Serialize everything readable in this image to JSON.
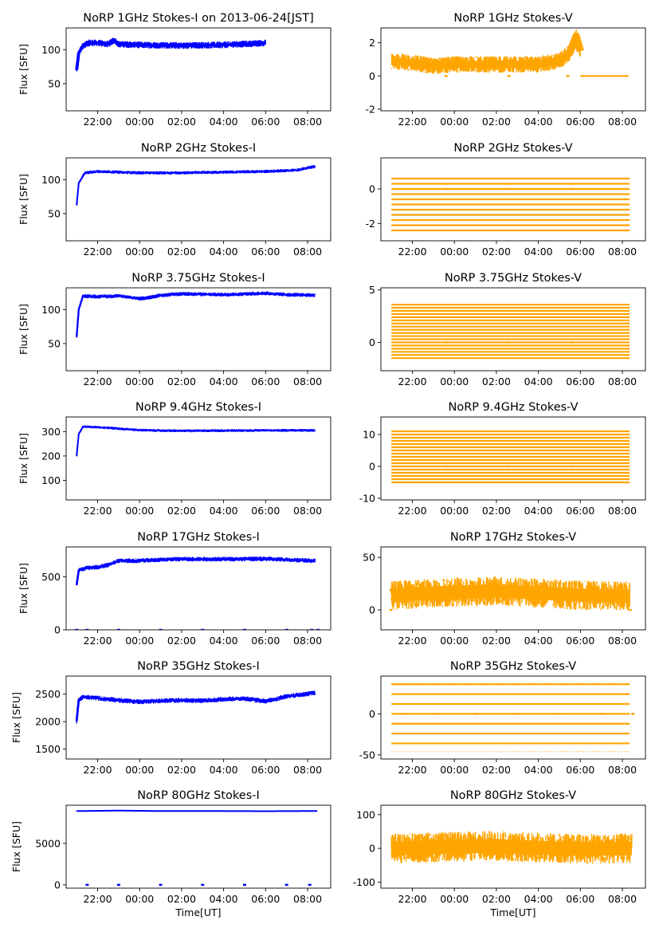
{
  "figure": {
    "shared_xlabel": "Time[UT]"
  },
  "colors": {
    "stokes_i": "#0000ff",
    "stokes_v": "#ffa500"
  },
  "chart_data": [
    {
      "type": "scatter",
      "panel": "1GHz-I",
      "title": "NoRP 1GHz Stokes-I on 2013-06-24[JST]",
      "ylabel": "Flux [SFU]",
      "xlabel": "",
      "x_ticks": [
        "22:00",
        "00:00",
        "02:00",
        "04:00",
        "06:00",
        "08:00"
      ],
      "y_ticks": [
        50,
        100
      ],
      "xlim": [
        20.5,
        33.1
      ],
      "ylim": [
        10,
        132
      ],
      "series": [
        {
          "name": "Stokes-I",
          "x_start": 21.0,
          "x_end": 30.0,
          "points": [
            [
              21.0,
              70
            ],
            [
              21.1,
              95
            ],
            [
              21.3,
              106
            ],
            [
              21.6,
              110
            ],
            [
              22.0,
              110
            ],
            [
              22.5,
              108
            ],
            [
              22.8,
              114
            ],
            [
              23.0,
              108
            ],
            [
              24.0,
              107
            ],
            [
              26.0,
              106
            ],
            [
              28.0,
              107
            ],
            [
              29.5,
              109
            ],
            [
              30.0,
              110
            ]
          ],
          "spread": 5,
          "dropouts": []
        }
      ]
    },
    {
      "type": "scatter",
      "panel": "1GHz-V",
      "title": "NoRP 1GHz Stokes-V",
      "ylabel": "",
      "xlabel": "",
      "x_ticks": [
        "22:00",
        "00:00",
        "02:00",
        "04:00",
        "06:00",
        "08:00"
      ],
      "y_ticks": [
        -2,
        0,
        2
      ],
      "xlim": [
        20.5,
        33.1
      ],
      "ylim": [
        -2.1,
        2.9
      ],
      "series": [
        {
          "name": "Stokes-V",
          "x_start": 21.0,
          "x_end": 30.0,
          "points": [
            [
              21.0,
              0.9
            ],
            [
              22.0,
              0.8
            ],
            [
              23.0,
              0.6
            ],
            [
              24.0,
              0.7
            ],
            [
              26.0,
              0.7
            ],
            [
              28.0,
              0.7
            ],
            [
              29.0,
              0.9
            ],
            [
              29.5,
              1.4
            ],
            [
              29.8,
              2.4
            ],
            [
              30.0,
              1.5
            ]
          ],
          "spread": 0.5,
          "zero_line": [
            30.0,
            32.3
          ],
          "dropouts": [
            23.6,
            26.6,
            29.4
          ]
        }
      ]
    },
    {
      "type": "scatter",
      "panel": "2GHz-I",
      "title": "NoRP 2GHz Stokes-I",
      "ylabel": "Flux [SFU]",
      "xlabel": "",
      "x_ticks": [
        "22:00",
        "00:00",
        "02:00",
        "04:00",
        "06:00",
        "08:00"
      ],
      "y_ticks": [
        50,
        100
      ],
      "xlim": [
        20.5,
        33.1
      ],
      "ylim": [
        10,
        132
      ],
      "series": [
        {
          "name": "Stokes-I",
          "x_start": 21.0,
          "x_end": 32.35,
          "points": [
            [
              21.0,
              62
            ],
            [
              21.1,
              95
            ],
            [
              21.4,
              110
            ],
            [
              22.0,
              112
            ],
            [
              24.0,
              110
            ],
            [
              26.0,
              110
            ],
            [
              28.0,
              111
            ],
            [
              30.0,
              112
            ],
            [
              31.5,
              114
            ],
            [
              32.3,
              119
            ]
          ],
          "spread": 2.5,
          "dropouts": []
        }
      ]
    },
    {
      "type": "scatter",
      "panel": "2GHz-V",
      "title": "NoRP 2GHz Stokes-V",
      "ylabel": "",
      "xlabel": "",
      "x_ticks": [
        "22:00",
        "00:00",
        "02:00",
        "04:00",
        "06:00",
        "08:00"
      ],
      "y_ticks": [
        -2,
        0
      ],
      "xlim": [
        20.5,
        33.1
      ],
      "ylim": [
        -3.0,
        1.8
      ],
      "series": [
        {
          "name": "Stokes-V",
          "x_start": 21.0,
          "x_end": 32.35,
          "levels": [
            0.6,
            0.3,
            0.0,
            -0.3,
            -0.6,
            -0.9,
            -1.2,
            -1.5,
            -1.8,
            -2.1,
            -2.4
          ],
          "dropouts": [
            23.6,
            26.6,
            29.6
          ]
        }
      ]
    },
    {
      "type": "scatter",
      "panel": "3.75GHz-I",
      "title": "NoRP 3.75GHz Stokes-I",
      "ylabel": "Flux [SFU]",
      "xlabel": "",
      "x_ticks": [
        "22:00",
        "00:00",
        "02:00",
        "04:00",
        "06:00",
        "08:00"
      ],
      "y_ticks": [
        50,
        100
      ],
      "xlim": [
        20.5,
        33.1
      ],
      "ylim": [
        10,
        132
      ],
      "series": [
        {
          "name": "Stokes-I",
          "x_start": 21.0,
          "x_end": 32.35,
          "points": [
            [
              21.0,
              60
            ],
            [
              21.1,
              100
            ],
            [
              21.3,
              120
            ],
            [
              22.0,
              119
            ],
            [
              23.0,
              120
            ],
            [
              24.0,
              116
            ],
            [
              24.5,
              118
            ],
            [
              25.0,
              121
            ],
            [
              26.0,
              123
            ],
            [
              28.0,
              122
            ],
            [
              30.0,
              124
            ],
            [
              31.0,
              122
            ],
            [
              32.3,
              121
            ]
          ],
          "spread": 3,
          "dropouts": []
        }
      ]
    },
    {
      "type": "scatter",
      "panel": "3.75GHz-V",
      "title": "NoRP 3.75GHz Stokes-V",
      "ylabel": "",
      "xlabel": "",
      "x_ticks": [
        "22:00",
        "00:00",
        "02:00",
        "04:00",
        "06:00",
        "08:00"
      ],
      "y_ticks": [
        0,
        5
      ],
      "xlim": [
        20.5,
        33.1
      ],
      "ylim": [
        -2.7,
        5.2
      ],
      "series": [
        {
          "name": "Stokes-V",
          "x_start": 21.0,
          "x_end": 32.35,
          "levels": [
            -1.5,
            -1.2,
            -0.9,
            -0.6,
            -0.3,
            0.0,
            0.3,
            0.6,
            0.9,
            1.2,
            1.5,
            1.8,
            2.1,
            2.4,
            2.7,
            3.0,
            3.3,
            3.6
          ],
          "dropouts": [
            23.6,
            26.6,
            29.6
          ]
        }
      ]
    },
    {
      "type": "scatter",
      "panel": "9.4GHz-I",
      "title": "NoRP 9.4GHz Stokes-I",
      "ylabel": "Flux [SFU]",
      "xlabel": "",
      "x_ticks": [
        "22:00",
        "00:00",
        "02:00",
        "04:00",
        "06:00",
        "08:00"
      ],
      "y_ticks": [
        100,
        200,
        300
      ],
      "xlim": [
        20.5,
        33.1
      ],
      "ylim": [
        20,
        360
      ],
      "series": [
        {
          "name": "Stokes-I",
          "x_start": 21.0,
          "x_end": 32.35,
          "points": [
            [
              21.0,
              200
            ],
            [
              21.1,
              290
            ],
            [
              21.3,
              320
            ],
            [
              22.0,
              318
            ],
            [
              23.0,
              312
            ],
            [
              24.0,
              306
            ],
            [
              26.0,
              303
            ],
            [
              28.0,
              304
            ],
            [
              30.0,
              305
            ],
            [
              32.3,
              305
            ]
          ],
          "spread": 6,
          "dropouts": []
        }
      ]
    },
    {
      "type": "scatter",
      "panel": "9.4GHz-V",
      "title": "NoRP 9.4GHz Stokes-V",
      "ylabel": "",
      "xlabel": "",
      "x_ticks": [
        "22:00",
        "00:00",
        "02:00",
        "04:00",
        "06:00",
        "08:00"
      ],
      "y_ticks": [
        -10,
        0,
        10
      ],
      "xlim": [
        20.5,
        33.1
      ],
      "ylim": [
        -10.5,
        15.5
      ],
      "series": [
        {
          "name": "Stokes-V",
          "x_start": 21.0,
          "x_end": 32.35,
          "levels": [
            -5,
            -4,
            -3,
            -2,
            -1,
            0,
            1,
            2,
            3,
            4,
            5,
            6,
            7,
            8,
            9,
            10,
            11
          ],
          "dropouts": [
            23.6,
            26.6,
            29.6
          ]
        }
      ]
    },
    {
      "type": "scatter",
      "panel": "17GHz-I",
      "title": "NoRP 17GHz Stokes-I",
      "ylabel": "Flux [SFU]",
      "xlabel": "",
      "x_ticks": [
        "22:00",
        "00:00",
        "02:00",
        "04:00",
        "06:00",
        "08:00"
      ],
      "y_ticks": [
        0,
        500
      ],
      "xlim": [
        20.5,
        33.1
      ],
      "ylim": [
        0,
        780
      ],
      "series": [
        {
          "name": "Stokes-I",
          "x_start": 21.0,
          "x_end": 32.35,
          "points": [
            [
              21.0,
              420
            ],
            [
              21.1,
              560
            ],
            [
              21.5,
              585
            ],
            [
              22.0,
              590
            ],
            [
              22.5,
              610
            ],
            [
              23.0,
              650
            ],
            [
              24.0,
              650
            ],
            [
              25.0,
              660
            ],
            [
              26.0,
              665
            ],
            [
              28.0,
              665
            ],
            [
              30.0,
              668
            ],
            [
              32.3,
              650
            ]
          ],
          "spread": 22,
          "dropouts": [
            21.0,
            21.5,
            23.0,
            25.0,
            27.0,
            29.0,
            31.0,
            32.2,
            32.5
          ]
        }
      ]
    },
    {
      "type": "scatter",
      "panel": "17GHz-V",
      "title": "NoRP 17GHz Stokes-V",
      "ylabel": "",
      "xlabel": "",
      "x_ticks": [
        "22:00",
        "00:00",
        "02:00",
        "04:00",
        "06:00",
        "08:00"
      ],
      "y_ticks": [
        0,
        50
      ],
      "xlim": [
        20.5,
        33.1
      ],
      "ylim": [
        -19,
        60
      ],
      "series": [
        {
          "name": "Stokes-V",
          "x_start": 21.0,
          "x_end": 32.35,
          "points": [
            [
              21.0,
              14
            ],
            [
              24.0,
              17
            ],
            [
              26.0,
              18
            ],
            [
              28.0,
              16
            ],
            [
              30.0,
              14
            ],
            [
              32.3,
              13
            ]
          ],
          "spread": 14,
          "zero_line_ends": true,
          "dropouts": []
        }
      ]
    },
    {
      "type": "scatter",
      "panel": "35GHz-I",
      "title": "NoRP 35GHz Stokes-I",
      "ylabel": "Flux [SFU]",
      "xlabel": "",
      "x_ticks": [
        "22:00",
        "00:00",
        "02:00",
        "04:00",
        "06:00",
        "08:00"
      ],
      "y_ticks": [
        1500,
        2000,
        2500
      ],
      "xlim": [
        20.5,
        33.1
      ],
      "ylim": [
        1320,
        2830
      ],
      "series": [
        {
          "name": "Stokes-I",
          "x_start": 21.0,
          "x_end": 32.35,
          "points": [
            [
              21.0,
              2010
            ],
            [
              21.1,
              2400
            ],
            [
              21.3,
              2450
            ],
            [
              22.0,
              2430
            ],
            [
              23.0,
              2390
            ],
            [
              24.0,
              2360
            ],
            [
              25.0,
              2380
            ],
            [
              26.0,
              2390
            ],
            [
              27.0,
              2380
            ],
            [
              28.0,
              2410
            ],
            [
              29.0,
              2420
            ],
            [
              30.0,
              2370
            ],
            [
              31.0,
              2460
            ],
            [
              32.3,
              2520
            ]
          ],
          "spread": 45,
          "dropouts": []
        }
      ]
    },
    {
      "type": "scatter",
      "panel": "35GHz-V",
      "title": "NoRP 35GHz Stokes-V",
      "ylabel": "",
      "xlabel": "",
      "x_ticks": [
        "22:00",
        "00:00",
        "02:00",
        "04:00",
        "06:00",
        "08:00"
      ],
      "y_ticks": [
        -50,
        0
      ],
      "xlim": [
        20.5,
        33.1
      ],
      "ylim": [
        -55,
        46
      ],
      "series": [
        {
          "name": "Stokes-V",
          "x_start": 21.0,
          "x_end": 32.35,
          "levels": [
            -36,
            -24,
            -12,
            0,
            12,
            24,
            36
          ],
          "faint_levels": [
            -46,
            -36,
            37
          ],
          "dropouts": [
            21.5,
            23.0,
            25.0,
            27.0,
            29.0,
            31.0,
            32.5
          ]
        }
      ]
    },
    {
      "type": "scatter",
      "panel": "80GHz-I",
      "title": "NoRP 80GHz Stokes-I",
      "ylabel": "Flux [SFU]",
      "xlabel": "Time[UT]",
      "x_ticks": [
        "22:00",
        "00:00",
        "02:00",
        "04:00",
        "06:00",
        "08:00"
      ],
      "y_ticks": [
        0,
        5000
      ],
      "xlim": [
        20.5,
        33.1
      ],
      "ylim": [
        -400,
        9600
      ],
      "series": [
        {
          "name": "Stokes-I",
          "x_start": 21.0,
          "x_end": 32.45,
          "points": [
            [
              21.0,
              8900
            ],
            [
              23.0,
              8950
            ],
            [
              25.0,
              8900
            ],
            [
              27.0,
              8900
            ],
            [
              30.0,
              8880
            ],
            [
              32.4,
              8900
            ]
          ],
          "spread": 60,
          "dropouts": [
            21.5,
            23.0,
            25.0,
            27.0,
            29.0,
            31.0,
            32.1
          ]
        }
      ]
    },
    {
      "type": "scatter",
      "panel": "80GHz-V",
      "title": "NoRP 80GHz Stokes-V",
      "ylabel": "",
      "xlabel": "Time[UT]",
      "x_ticks": [
        "22:00",
        "00:00",
        "02:00",
        "04:00",
        "06:00",
        "08:00"
      ],
      "y_ticks": [
        -100,
        0,
        100
      ],
      "xlim": [
        20.5,
        33.1
      ],
      "ylim": [
        -118,
        128
      ],
      "series": [
        {
          "name": "Stokes-V",
          "x_start": 21.0,
          "x_end": 32.45,
          "points": [
            [
              21.0,
              0
            ],
            [
              24.0,
              5
            ],
            [
              26.0,
              8
            ],
            [
              28.0,
              2
            ],
            [
              30.0,
              -2
            ],
            [
              32.4,
              0
            ]
          ],
          "spread": 45,
          "dropouts": []
        }
      ]
    }
  ]
}
